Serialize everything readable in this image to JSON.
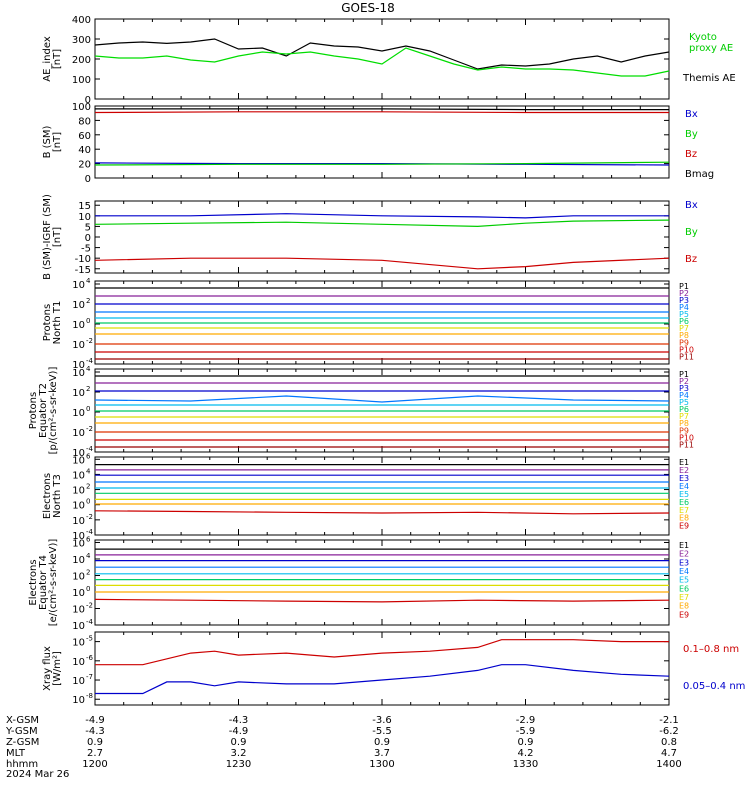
{
  "title": "GOES-18",
  "chart_data": [
    {
      "type": "line",
      "ylabel": [
        "AE_index",
        "[nT]"
      ],
      "yscale": "linear",
      "ylim": [
        0,
        400
      ],
      "yticks": [
        0,
        100,
        200,
        300,
        400
      ],
      "xlim": [
        0,
        120
      ],
      "series": [
        {
          "name": "Themis AE",
          "color": "#000000",
          "x": [
            0,
            5,
            10,
            15,
            20,
            25,
            30,
            35,
            40,
            45,
            50,
            55,
            60,
            65,
            70,
            75,
            80,
            85,
            90,
            95,
            100,
            105,
            110,
            115,
            120
          ],
          "y": [
            270,
            280,
            285,
            278,
            285,
            300,
            250,
            255,
            215,
            280,
            265,
            260,
            240,
            265,
            240,
            195,
            150,
            170,
            165,
            175,
            200,
            215,
            185,
            215,
            235
          ]
        },
        {
          "name": "Kyoto proxy AE",
          "color": "#00dd00",
          "x": [
            0,
            5,
            10,
            15,
            20,
            25,
            30,
            35,
            40,
            45,
            50,
            55,
            60,
            65,
            70,
            75,
            80,
            85,
            90,
            95,
            100,
            105,
            110,
            115,
            120
          ],
          "y": [
            215,
            205,
            205,
            215,
            195,
            185,
            215,
            235,
            225,
            235,
            215,
            200,
            175,
            255,
            215,
            175,
            145,
            160,
            150,
            150,
            145,
            130,
            115,
            115,
            140
          ]
        }
      ],
      "legend": [
        "Kyoto",
        "proxy AE",
        "Themis AE"
      ]
    },
    {
      "type": "line",
      "ylabel": [
        "B (SM)",
        "[nT]"
      ],
      "yscale": "linear",
      "ylim": [
        0,
        100
      ],
      "yticks": [
        0,
        20,
        40,
        60,
        80,
        100
      ],
      "xlim": [
        0,
        120
      ],
      "series": [
        {
          "name": "Bx",
          "color": "#0000cc",
          "x": [
            0,
            30,
            60,
            90,
            120
          ],
          "y": [
            21,
            20,
            20,
            19,
            18
          ]
        },
        {
          "name": "By",
          "color": "#00cc00",
          "x": [
            0,
            30,
            60,
            90,
            120
          ],
          "y": [
            18,
            19,
            19,
            20,
            22
          ]
        },
        {
          "name": "Bz",
          "color": "#cc0000",
          "x": [
            0,
            30,
            60,
            90,
            120
          ],
          "y": [
            91,
            92,
            92,
            91,
            91
          ]
        },
        {
          "name": "Bmag",
          "color": "#000000",
          "x": [
            0,
            30,
            60,
            90,
            120
          ],
          "y": [
            96,
            96,
            96,
            95,
            95
          ]
        }
      ]
    },
    {
      "type": "line",
      "ylabel": [
        "B (SM)-IGRF (SM)",
        "[nT]"
      ],
      "yscale": "linear",
      "ylim": [
        -17,
        17
      ],
      "yticks": [
        -15,
        -10,
        -5,
        0,
        5,
        10,
        15
      ],
      "xlim": [
        0,
        120
      ],
      "series": [
        {
          "name": "Bx",
          "color": "#0000cc",
          "x": [
            0,
            20,
            40,
            60,
            80,
            90,
            100,
            120
          ],
          "y": [
            10,
            10,
            11,
            10,
            9.5,
            9,
            10,
            10
          ]
        },
        {
          "name": "By",
          "color": "#00cc00",
          "x": [
            0,
            20,
            40,
            60,
            80,
            90,
            100,
            120
          ],
          "y": [
            6,
            6.5,
            7,
            6,
            5,
            6.5,
            7.5,
            8
          ]
        },
        {
          "name": "Bz",
          "color": "#cc0000",
          "x": [
            0,
            20,
            40,
            60,
            80,
            90,
            100,
            120
          ],
          "y": [
            -11,
            -10,
            -10,
            -11,
            -15,
            -14,
            -12,
            -10
          ]
        }
      ]
    },
    {
      "type": "line",
      "ylabel": [
        "Protons",
        "North T1"
      ],
      "yscale": "log",
      "ylim": [
        -4,
        4.3
      ],
      "yticks": [
        -4,
        -2,
        0,
        2,
        4
      ],
      "xlim": [
        0,
        120
      ],
      "series": [
        {
          "name": "P1",
          "color": "#000000",
          "x": [
            0,
            120
          ],
          "y": [
            3.6,
            3.6
          ]
        },
        {
          "name": "P2",
          "color": "#882299",
          "x": [
            0,
            120
          ],
          "y": [
            2.8,
            2.8
          ]
        },
        {
          "name": "P3",
          "color": "#0000cc",
          "x": [
            0,
            120
          ],
          "y": [
            2.0,
            2.0
          ]
        },
        {
          "name": "P4",
          "color": "#0077ff",
          "x": [
            0,
            120
          ],
          "y": [
            1.2,
            1.2
          ]
        },
        {
          "name": "P5",
          "color": "#00bbee",
          "x": [
            0,
            120
          ],
          "y": [
            0.6,
            0.6
          ]
        },
        {
          "name": "P6",
          "color": "#00cc66",
          "x": [
            0,
            120
          ],
          "y": [
            0.1,
            0.1
          ]
        },
        {
          "name": "P7",
          "color": "#dddd00",
          "x": [
            0,
            120
          ],
          "y": [
            -0.4,
            -0.4
          ]
        },
        {
          "name": "P8",
          "color": "#ffaa00",
          "x": [
            0,
            120
          ],
          "y": [
            -1.0,
            -1.0
          ]
        },
        {
          "name": "P9",
          "color": "#dd3300",
          "x": [
            0,
            120
          ],
          "y": [
            -2.0,
            -2.0
          ]
        },
        {
          "name": "P10",
          "color": "#cc0000",
          "x": [
            0,
            120
          ],
          "y": [
            -2.8,
            -2.8
          ]
        },
        {
          "name": "P11",
          "color": "#990000",
          "x": [
            0,
            120
          ],
          "y": [
            -3.5,
            -3.5
          ]
        }
      ]
    },
    {
      "type": "line",
      "ylabel": [
        "Protons",
        "Equator T2",
        "[p/(cm²-s-sr-keV)]"
      ],
      "yscale": "log",
      "ylim": [
        -4,
        4.3
      ],
      "yticks": [
        -4,
        -2,
        0,
        2,
        4
      ],
      "xlim": [
        0,
        120
      ],
      "series": [
        {
          "name": "P1",
          "color": "#000000",
          "x": [
            0,
            120
          ],
          "y": [
            3.6,
            3.6
          ]
        },
        {
          "name": "P2",
          "color": "#882299",
          "x": [
            0,
            120
          ],
          "y": [
            2.9,
            2.9
          ]
        },
        {
          "name": "P3",
          "color": "#0000cc",
          "x": [
            0,
            120
          ],
          "y": [
            2.1,
            2.1
          ]
        },
        {
          "name": "P4",
          "color": "#0077ff",
          "x": [
            0,
            20,
            40,
            60,
            80,
            100,
            120
          ],
          "y": [
            1.2,
            1.1,
            1.6,
            1.0,
            1.6,
            1.2,
            1.1
          ]
        },
        {
          "name": "P5",
          "color": "#00bbee",
          "x": [
            0,
            120
          ],
          "y": [
            0.7,
            0.7
          ]
        },
        {
          "name": "P6",
          "color": "#00cc66",
          "x": [
            0,
            120
          ],
          "y": [
            0.1,
            0.1
          ]
        },
        {
          "name": "P7",
          "color": "#dddd00",
          "x": [
            0,
            120
          ],
          "y": [
            -0.5,
            -0.5
          ]
        },
        {
          "name": "P8",
          "color": "#ffaa00",
          "x": [
            0,
            120
          ],
          "y": [
            -1.1,
            -1.1
          ]
        },
        {
          "name": "P9",
          "color": "#dd3300",
          "x": [
            0,
            120
          ],
          "y": [
            -2.0,
            -2.0
          ]
        },
        {
          "name": "P10",
          "color": "#cc0000",
          "x": [
            0,
            120
          ],
          "y": [
            -2.8,
            -2.8
          ]
        },
        {
          "name": "P11",
          "color": "#990000",
          "x": [
            0,
            120
          ],
          "y": [
            -3.5,
            -3.5
          ]
        }
      ]
    },
    {
      "type": "line",
      "ylabel": [
        "Electrons",
        "North T3"
      ],
      "yscale": "log",
      "ylim": [
        -4,
        6.3
      ],
      "yticks": [
        -4,
        -2,
        0,
        2,
        4,
        6
      ],
      "xlim": [
        0,
        120
      ],
      "series": [
        {
          "name": "E1",
          "color": "#000000",
          "x": [
            0,
            120
          ],
          "y": [
            5.3,
            5.3
          ]
        },
        {
          "name": "E2",
          "color": "#882299",
          "x": [
            0,
            120
          ],
          "y": [
            4.6,
            4.6
          ]
        },
        {
          "name": "E3",
          "color": "#0000cc",
          "x": [
            0,
            120
          ],
          "y": [
            3.9,
            3.9
          ]
        },
        {
          "name": "E4",
          "color": "#0077ff",
          "x": [
            0,
            120
          ],
          "y": [
            3.0,
            3.0
          ]
        },
        {
          "name": "E5",
          "color": "#00bbee",
          "x": [
            0,
            120
          ],
          "y": [
            2.2,
            2.2
          ]
        },
        {
          "name": "E6",
          "color": "#00cc66",
          "x": [
            0,
            120
          ],
          "y": [
            1.5,
            1.5
          ]
        },
        {
          "name": "E7",
          "color": "#dddd00",
          "x": [
            0,
            120
          ],
          "y": [
            0.7,
            0.7
          ]
        },
        {
          "name": "E8",
          "color": "#ffaa00",
          "x": [
            0,
            120
          ],
          "y": [
            0.1,
            0.1
          ]
        },
        {
          "name": "E9",
          "color": "#cc0000",
          "x": [
            0,
            20,
            40,
            60,
            80,
            100,
            120
          ],
          "y": [
            -0.8,
            -0.9,
            -1.0,
            -1.1,
            -1.0,
            -1.2,
            -1.1
          ]
        }
      ]
    },
    {
      "type": "line",
      "ylabel": [
        "Electrons",
        "Equator T4",
        "[e/(cm²-s-sr-keV)]"
      ],
      "yscale": "log",
      "ylim": [
        -4,
        6.3
      ],
      "yticks": [
        -4,
        -2,
        0,
        2,
        4,
        6
      ],
      "xlim": [
        0,
        120
      ],
      "series": [
        {
          "name": "E1",
          "color": "#000000",
          "x": [
            0,
            120
          ],
          "y": [
            5.2,
            5.2
          ]
        },
        {
          "name": "E2",
          "color": "#882299",
          "x": [
            0,
            120
          ],
          "y": [
            4.5,
            4.5
          ]
        },
        {
          "name": "E3",
          "color": "#0000cc",
          "x": [
            0,
            120
          ],
          "y": [
            3.8,
            3.8
          ]
        },
        {
          "name": "E4",
          "color": "#0077ff",
          "x": [
            0,
            120
          ],
          "y": [
            3.0,
            3.0
          ]
        },
        {
          "name": "E5",
          "color": "#00bbee",
          "x": [
            0,
            120
          ],
          "y": [
            2.2,
            2.2
          ]
        },
        {
          "name": "E6",
          "color": "#00cc66",
          "x": [
            0,
            120
          ],
          "y": [
            1.5,
            1.5
          ]
        },
        {
          "name": "E7",
          "color": "#dddd00",
          "x": [
            0,
            120
          ],
          "y": [
            0.8,
            0.8
          ]
        },
        {
          "name": "E8",
          "color": "#ffaa00",
          "x": [
            0,
            120
          ],
          "y": [
            0.0,
            0.0
          ]
        },
        {
          "name": "E9",
          "color": "#cc0000",
          "x": [
            0,
            20,
            40,
            60,
            80,
            100,
            120
          ],
          "y": [
            -0.9,
            -1.0,
            -1.1,
            -1.2,
            -1.0,
            -1.1,
            -1.0
          ]
        }
      ]
    },
    {
      "type": "line",
      "ylabel": [
        "Xray flux",
        "[W/m²]"
      ],
      "yscale": "log",
      "ylim": [
        -8.3,
        -4.5
      ],
      "yticks": [
        -8,
        -7,
        -6,
        -5
      ],
      "xlim": [
        0,
        120
      ],
      "series": [
        {
          "name": "0.1–0.8 nm",
          "color": "#cc0000",
          "x": [
            0,
            10,
            20,
            25,
            30,
            40,
            50,
            60,
            70,
            80,
            85,
            90,
            100,
            110,
            120
          ],
          "y": [
            -6.2,
            -6.2,
            -5.6,
            -5.5,
            -5.7,
            -5.6,
            -5.8,
            -5.6,
            -5.5,
            -5.3,
            -4.9,
            -4.9,
            -4.9,
            -5.0,
            -5.0
          ]
        },
        {
          "name": "0.05–0.4 nm",
          "color": "#0000cc",
          "x": [
            0,
            10,
            15,
            20,
            25,
            30,
            40,
            50,
            60,
            70,
            80,
            85,
            90,
            100,
            110,
            120
          ],
          "y": [
            -7.7,
            -7.7,
            -7.1,
            -7.1,
            -7.3,
            -7.1,
            -7.2,
            -7.2,
            -7.0,
            -6.8,
            -6.5,
            -6.2,
            -6.2,
            -6.5,
            -6.7,
            -6.8
          ]
        }
      ],
      "legend": [
        "0.1–0.8 nm",
        "0.05–0.4 nm"
      ]
    }
  ],
  "ephemeris": {
    "rows": [
      {
        "label": "X-GSM",
        "values": [
          "-4.9",
          "-4.3",
          "-3.6",
          "-2.9",
          "-2.1"
        ]
      },
      {
        "label": "Y-GSM",
        "values": [
          "-4.3",
          "-4.9",
          "-5.5",
          "-5.9",
          "-6.2"
        ]
      },
      {
        "label": "Z-GSM",
        "values": [
          "0.9",
          "0.9",
          "0.9",
          "0.9",
          "0.8"
        ]
      },
      {
        "label": "MLT",
        "values": [
          "2.7",
          "3.2",
          "3.7",
          "4.2",
          "4.7"
        ]
      },
      {
        "label": "hhmm",
        "values": [
          "1200",
          "1230",
          "1300",
          "1330",
          "1400"
        ]
      }
    ],
    "date": "2024 Mar 26"
  }
}
